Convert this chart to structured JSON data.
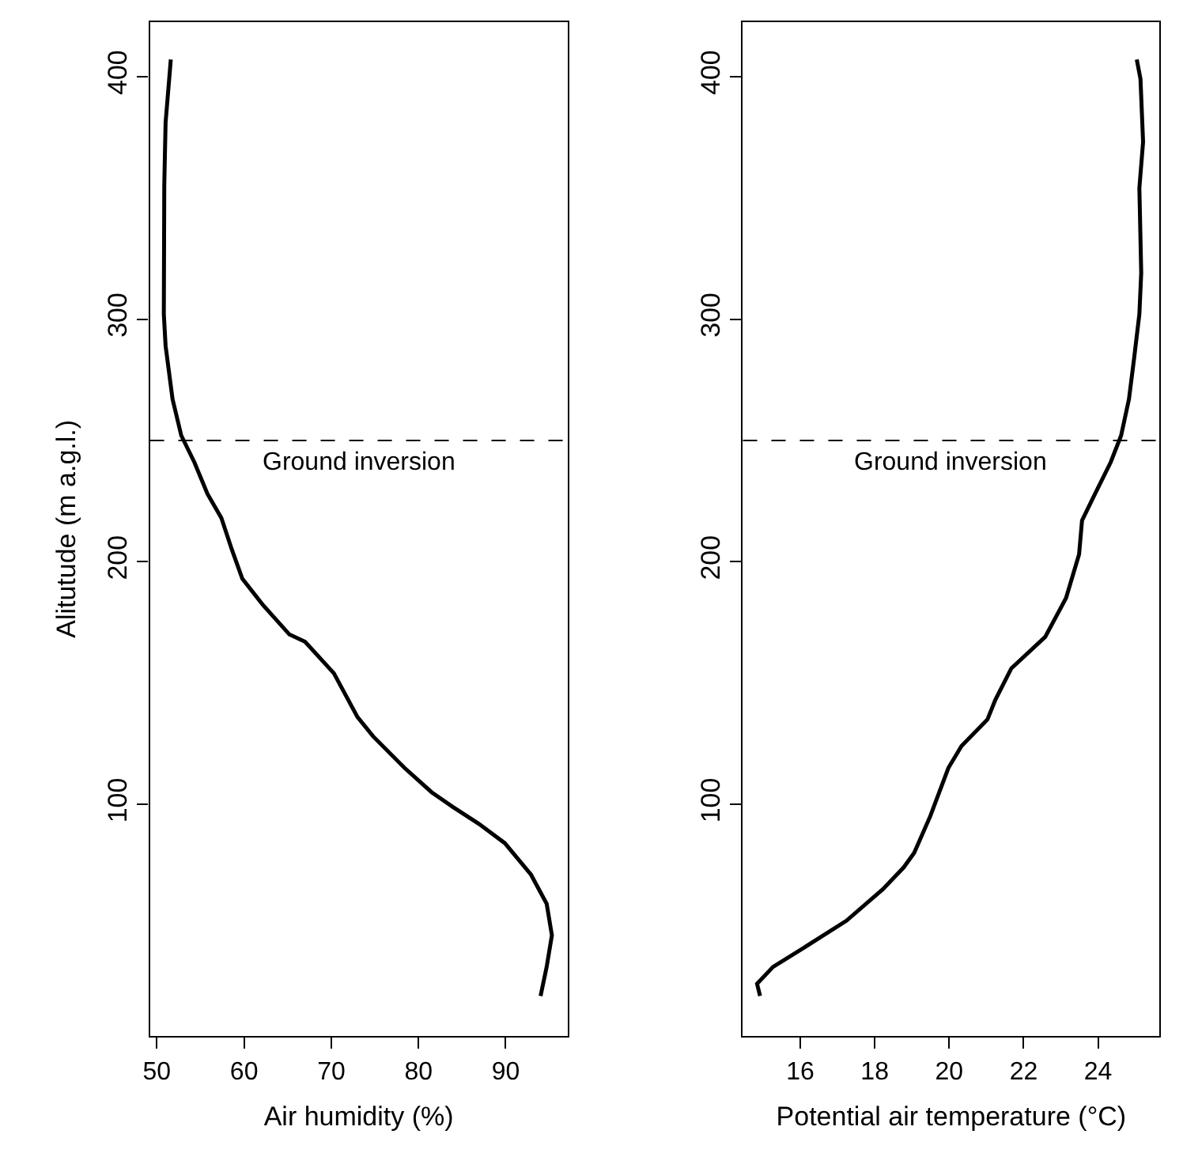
{
  "chart_data": [
    {
      "type": "line",
      "xlabel": "Air humidity (%)",
      "ylabel": "Alitutude (m a.g.l.)",
      "xlim": [
        49.2,
        97.1
      ],
      "xticks": [
        50,
        60,
        70,
        80,
        90
      ],
      "ylim": [
        4.5,
        422.5
      ],
      "yticks": [
        100,
        200,
        300,
        400
      ],
      "line_style": "solid",
      "marker": "none",
      "series": [
        {
          "color": "#000000",
          "x": [
            51.6,
            51.0,
            50.85,
            50.8,
            51.0,
            51.8,
            52.8,
            54.3,
            55.8,
            57.4,
            58.6,
            59.8,
            62.2,
            65.2,
            67.0,
            70.3,
            73.0,
            74.8,
            78.4,
            81.5,
            83.9,
            86.9,
            89.9,
            92.9,
            94.7,
            95.3,
            94.7,
            94.0
          ],
          "values": [
            407,
            381,
            355,
            302,
            289,
            267,
            252,
            241,
            228,
            218,
            205,
            193,
            182,
            170,
            167,
            154,
            136,
            128,
            115,
            105,
            99,
            92,
            84,
            71,
            59,
            46,
            33,
            21
          ]
        }
      ],
      "ref_lines": [
        {
          "axis": "y",
          "value": 250,
          "label": "Ground inversion",
          "color": "#000000",
          "line_style": "dashed"
        }
      ]
    },
    {
      "type": "line",
      "xlabel": "Potential air temperature (°C)",
      "xlim": [
        14.46,
        25.65
      ],
      "xticks": [
        16,
        18,
        20,
        22,
        24
      ],
      "ylim": [
        4.5,
        422.5
      ],
      "yticks": [
        100,
        200,
        300,
        400
      ],
      "line_style": "solid",
      "marker": "none",
      "series": [
        {
          "color": "#000000",
          "x": [
            25.04,
            25.14,
            25.21,
            25.11,
            25.16,
            25.11,
            24.97,
            24.83,
            24.62,
            24.34,
            23.92,
            23.57,
            23.49,
            23.14,
            22.58,
            21.67,
            21.24,
            21.03,
            20.33,
            19.98,
            19.49,
            19.06,
            18.78,
            18.22,
            17.24,
            16.11,
            15.27,
            14.84,
            14.92
          ],
          "values": [
            407,
            399,
            373,
            354,
            319,
            302,
            284,
            267,
            252,
            241,
            228,
            217,
            203,
            185,
            169,
            156,
            143,
            135,
            124,
            115,
            95,
            80,
            74,
            65,
            52,
            41,
            33,
            26,
            21
          ]
        }
      ],
      "ref_lines": [
        {
          "axis": "y",
          "value": 250,
          "label": "Ground inversion",
          "color": "#000000",
          "line_style": "dashed"
        }
      ]
    }
  ]
}
